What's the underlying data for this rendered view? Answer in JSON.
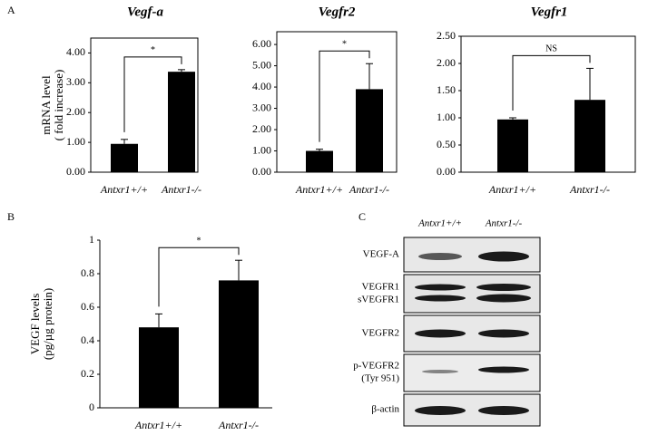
{
  "panel_labels": [
    "A",
    "B",
    "C"
  ],
  "chart_data": [
    {
      "type": "bar",
      "title": "Vegf-a",
      "y_label": [
        "mRNA level",
        "( fold increase)"
      ],
      "categories": [
        "Antxr1+/+",
        "Antxr1-/-"
      ],
      "values": [
        0.95,
        3.37
      ],
      "errors": [
        0.15,
        0.07
      ],
      "color": "#000000",
      "ylim": [
        0,
        4.5
      ],
      "yticks": [
        {
          "value": 0,
          "label": "0.00"
        },
        {
          "value": 1,
          "label": "1.00"
        },
        {
          "value": 2,
          "label": "2.00"
        },
        {
          "value": 3,
          "label": "3.00"
        },
        {
          "value": 4,
          "label": "4.00"
        }
      ],
      "frame": true,
      "annotation": "*"
    },
    {
      "type": "bar",
      "title": "Vegfr2",
      "categories": [
        "Antxr1+/+",
        "Antxr1-/-"
      ],
      "values": [
        1.0,
        3.9
      ],
      "errors": [
        0.08,
        1.2
      ],
      "color": "#000000",
      "ylim": [
        0,
        6.6
      ],
      "yticks": [
        {
          "value": 0,
          "label": "0.00"
        },
        {
          "value": 1,
          "label": "1.00"
        },
        {
          "value": 2,
          "label": "2.00"
        },
        {
          "value": 3,
          "label": "3.00"
        },
        {
          "value": 4,
          "label": "4.00"
        },
        {
          "value": 5,
          "label": "5.00"
        },
        {
          "value": 6,
          "label": "6.00"
        }
      ],
      "frame": true,
      "annotation": "*"
    },
    {
      "type": "bar",
      "title": "Vegfr1",
      "categories": [
        "Antxr1+/+",
        "Antxr1-/-"
      ],
      "values": [
        0.97,
        1.33
      ],
      "errors": [
        0.03,
        0.58
      ],
      "color": "#000000",
      "ylim": [
        0,
        2.5
      ],
      "yticks": [
        {
          "value": 0,
          "label": "0.00"
        },
        {
          "value": 0.5,
          "label": "0.50"
        },
        {
          "value": 1,
          "label": "1.00"
        },
        {
          "value": 1.5,
          "label": "1.50"
        },
        {
          "value": 2,
          "label": "2.00"
        },
        {
          "value": 2.5,
          "label": "2.50"
        }
      ],
      "frame": true,
      "annotation": "NS"
    },
    {
      "type": "bar",
      "y_label": [
        "VEGF levels",
        "(pg/µg protein)"
      ],
      "categories": [
        "Antxr1+/+",
        "Antxr1-/-"
      ],
      "values": [
        0.48,
        0.76
      ],
      "errors": [
        0.08,
        0.12
      ],
      "color": "#000000",
      "ylim": [
        0,
        1
      ],
      "yticks": [
        0,
        0.2,
        0.4,
        0.6,
        0.8,
        1
      ],
      "frame": false,
      "annotation": "*"
    }
  ],
  "blot": {
    "lanes": [
      "Antxr1+/+",
      "Antxr1-/-"
    ],
    "rows": [
      [
        "VEGF-A"
      ],
      [
        "VEGFR1",
        "sVEGFR1"
      ],
      [
        "VEGFR2"
      ],
      [
        "p-VEGFR2",
        "(Tyr 951)"
      ],
      [
        "β-actin"
      ]
    ]
  }
}
